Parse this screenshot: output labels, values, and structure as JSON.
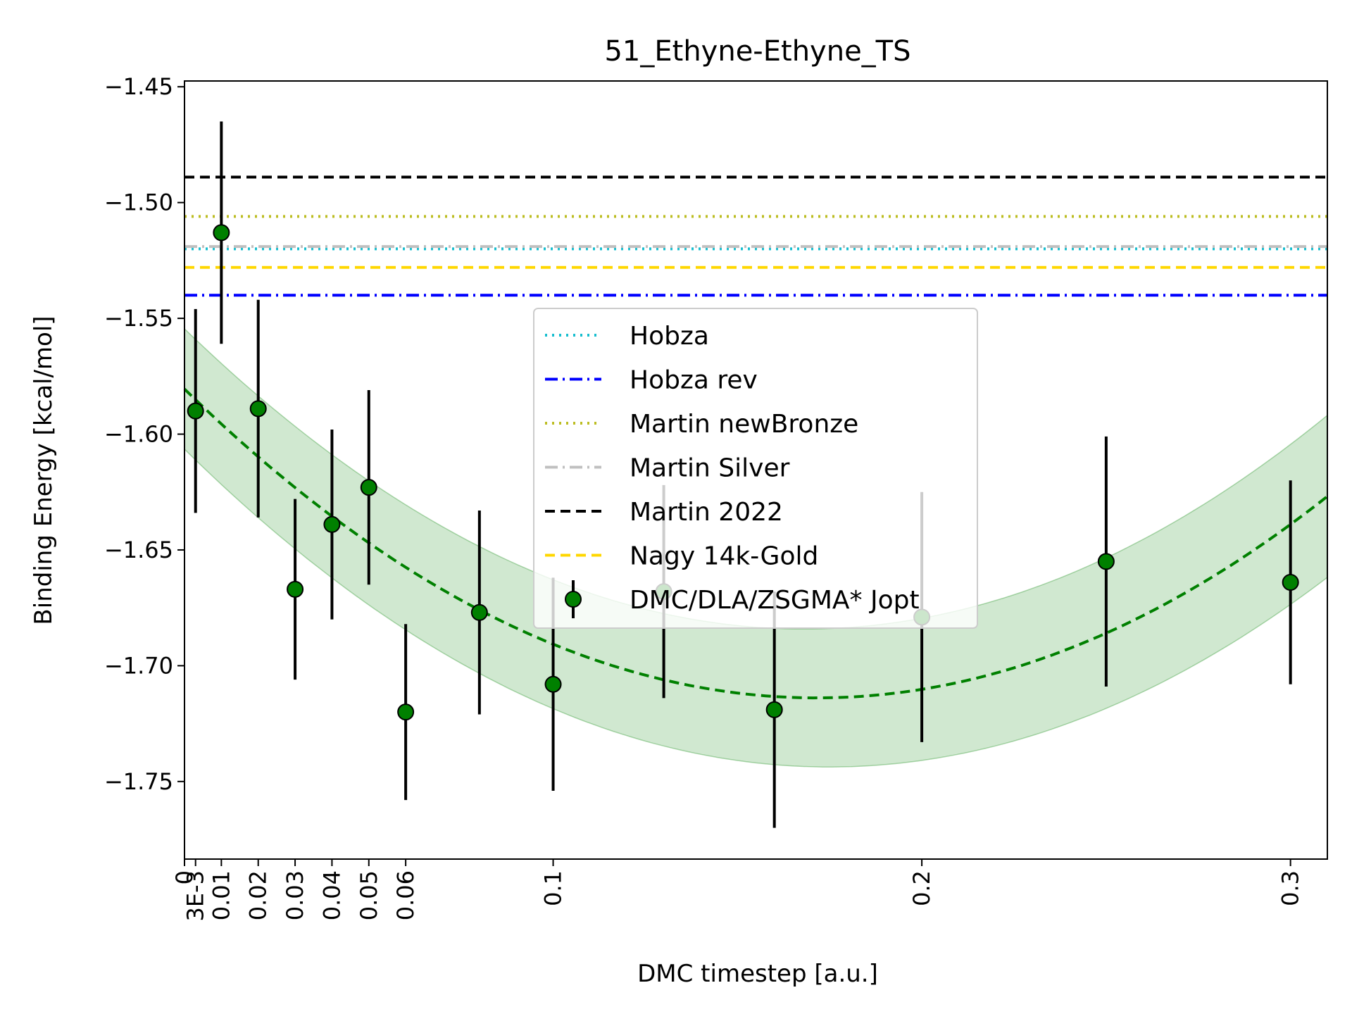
{
  "chart_data": {
    "type": "scatter",
    "title": "51_Ethyne-Ethyne_TS",
    "xlabel": "DMC timestep [a.u.]",
    "ylabel": "Binding Energy [kcal/mol]",
    "xlim": [
      0,
      0.31
    ],
    "ylim": [
      -1.7835,
      -1.4475
    ],
    "x_ticks": [
      {
        "value": 0,
        "label": "0"
      },
      {
        "value": 0.003,
        "label": "3E-3"
      },
      {
        "value": 0.01,
        "label": "0.01"
      },
      {
        "value": 0.02,
        "label": "0.02"
      },
      {
        "value": 0.03,
        "label": "0.03"
      },
      {
        "value": 0.04,
        "label": "0.04"
      },
      {
        "value": 0.05,
        "label": "0.05"
      },
      {
        "value": 0.06,
        "label": "0.06"
      },
      {
        "value": 0.1,
        "label": "0.1"
      },
      {
        "value": 0.2,
        "label": "0.2"
      },
      {
        "value": 0.3,
        "label": "0.3"
      }
    ],
    "y_ticks": [
      {
        "value": -1.45,
        "label": "−1.45"
      },
      {
        "value": -1.5,
        "label": "−1.50"
      },
      {
        "value": -1.55,
        "label": "−1.55"
      },
      {
        "value": -1.6,
        "label": "−1.60"
      },
      {
        "value": -1.65,
        "label": "−1.65"
      },
      {
        "value": -1.7,
        "label": "−1.70"
      },
      {
        "value": -1.75,
        "label": "−1.75"
      }
    ],
    "grid": false,
    "legend_position": "center",
    "reference_lines": [
      {
        "name": "Hobza",
        "value": -1.52,
        "color": "#17becf",
        "style": "dotted"
      },
      {
        "name": "Hobza rev",
        "value": -1.54,
        "color": "#0000ff",
        "style": "dashdot"
      },
      {
        "name": "Martin newBronze",
        "value": -1.506,
        "color": "#bcbd22",
        "style": "dotted"
      },
      {
        "name": "Martin Silver",
        "value": -1.519,
        "color": "#c0c0c0",
        "style": "dashdot"
      },
      {
        "name": "Martin 2022",
        "value": -1.489,
        "color": "#000000",
        "style": "dashed"
      },
      {
        "name": "Nagy 14k-Gold",
        "value": -1.528,
        "color": "#ffd700",
        "style": "dashed"
      }
    ],
    "series": [
      {
        "name": "DMC/DLA/ZSGMA* Jopt",
        "color": "#008000",
        "points": [
          {
            "x": 0.003,
            "y": -1.59,
            "err": 0.044
          },
          {
            "x": 0.01,
            "y": -1.513,
            "err": 0.048
          },
          {
            "x": 0.02,
            "y": -1.589,
            "err": 0.047
          },
          {
            "x": 0.03,
            "y": -1.667,
            "err": 0.039
          },
          {
            "x": 0.04,
            "y": -1.639,
            "err": 0.041
          },
          {
            "x": 0.05,
            "y": -1.623,
            "err": 0.042
          },
          {
            "x": 0.06,
            "y": -1.72,
            "err": 0.038
          },
          {
            "x": 0.08,
            "y": -1.677,
            "err": 0.044
          },
          {
            "x": 0.1,
            "y": -1.708,
            "err": 0.046
          },
          {
            "x": 0.13,
            "y": -1.668,
            "err": 0.046
          },
          {
            "x": 0.16,
            "y": -1.719,
            "err": 0.051
          },
          {
            "x": 0.2,
            "y": -1.679,
            "err": 0.054
          },
          {
            "x": 0.25,
            "y": -1.655,
            "err": 0.054
          },
          {
            "x": 0.3,
            "y": -1.664,
            "err": 0.044
          }
        ]
      }
    ],
    "fit": {
      "color": "#008000",
      "band_color": "#a9d5a9",
      "coefficients": [
        -1.5805,
        -1.5557,
        4.5359
      ],
      "band_halfwidth": [
        0.026,
        0.0135,
        0.05
      ]
    }
  }
}
